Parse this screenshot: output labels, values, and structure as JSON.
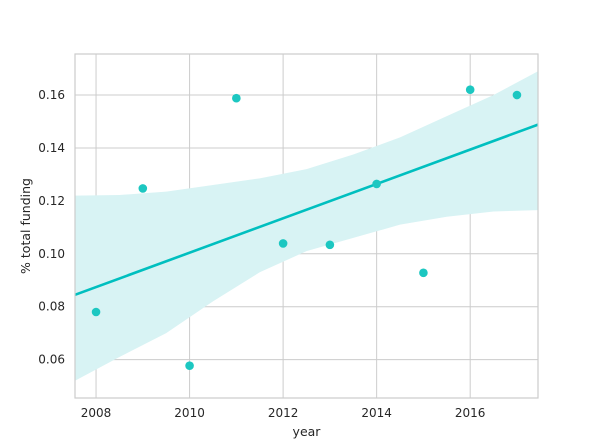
{
  "chart_data": {
    "type": "scatter",
    "title": "",
    "xlabel": "year",
    "ylabel": "% total funding",
    "xlim": [
      2007.55,
      2017.45
    ],
    "ylim": [
      0.0455,
      0.1755
    ],
    "x_ticks": [
      2008,
      2010,
      2012,
      2014,
      2016
    ],
    "x_tick_labels": [
      "2008",
      "2010",
      "2012",
      "2014",
      "2016"
    ],
    "y_ticks": [
      0.06,
      0.08,
      0.1,
      0.12,
      0.14,
      0.16
    ],
    "y_tick_labels": [
      "0.06",
      "0.08",
      "0.10",
      "0.12",
      "0.14",
      "0.16"
    ],
    "grid": true,
    "legend": "none",
    "points": {
      "x": [
        2008,
        2009,
        2010,
        2011,
        2012,
        2013,
        2014,
        2015,
        2016,
        2017
      ],
      "y": [
        0.078,
        0.1247,
        0.0577,
        0.1588,
        0.1039,
        0.1034,
        0.1264,
        0.0928,
        0.162,
        0.16
      ]
    },
    "regression": {
      "x": [
        2007.55,
        2017.45
      ],
      "y": [
        0.0845,
        0.1488
      ]
    },
    "confidence_band": {
      "x": [
        2007.55,
        2008.5,
        2009.5,
        2010.5,
        2011.5,
        2012.5,
        2013.5,
        2014.5,
        2015.5,
        2016.5,
        2017.45
      ],
      "lower": [
        0.052,
        0.061,
        0.07,
        0.082,
        0.093,
        0.101,
        0.106,
        0.111,
        0.114,
        0.116,
        0.1165
      ],
      "upper": [
        0.122,
        0.1222,
        0.1235,
        0.126,
        0.1285,
        0.132,
        0.1375,
        0.144,
        0.152,
        0.16,
        0.169
      ]
    },
    "colors": {
      "points": "#1cc7c1",
      "line": "#00bfbf",
      "band": "#d8f3f4",
      "grid": "#cccccc",
      "background": "#ffffff"
    }
  }
}
